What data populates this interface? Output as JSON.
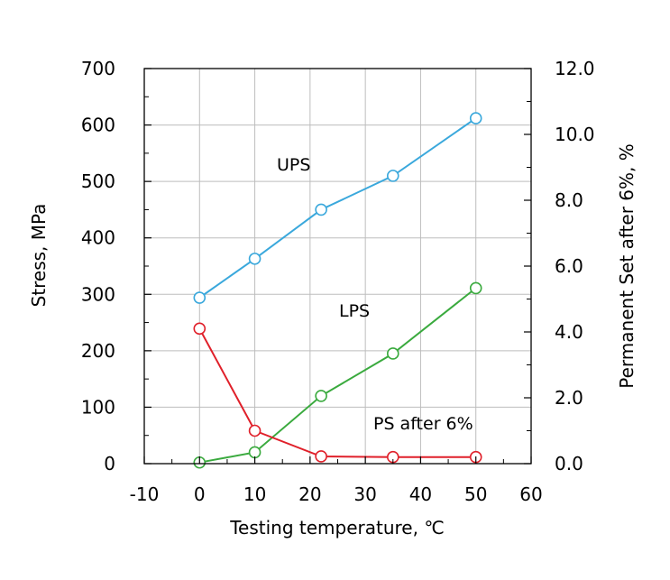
{
  "chart_data": {
    "type": "line",
    "xlabel": "Testing temperature, ℃",
    "ylabel": "Stress, MPa",
    "y2label": "Permanent Set after 6%, %",
    "xlim": [
      -10,
      60
    ],
    "ylim": [
      0,
      700
    ],
    "y2lim": [
      0,
      12
    ],
    "x_ticks": [
      "-10",
      "0",
      "10",
      "20",
      "30",
      "40",
      "50",
      "60"
    ],
    "y_ticks": [
      "0",
      "100",
      "200",
      "300",
      "400",
      "500",
      "600",
      "700"
    ],
    "y2_ticks": [
      "0.0",
      "2.0",
      "4.0",
      "6.0",
      "8.0",
      "10.0",
      "12.0"
    ],
    "grid": true,
    "series": [
      {
        "name": "UPS",
        "axis": "left",
        "color": "#3aa8dc",
        "marker": "open-circle",
        "x": [
          0,
          10,
          22,
          35,
          50
        ],
        "y": [
          294,
          363,
          450,
          510,
          612
        ]
      },
      {
        "name": "LPS",
        "axis": "left",
        "color": "#3aaa3e",
        "marker": "open-circle",
        "x": [
          0,
          10,
          22,
          35,
          50
        ],
        "y": [
          2,
          20,
          120,
          195,
          311
        ]
      },
      {
        "name": "PS after 6%",
        "axis": "right",
        "color": "#e0202a",
        "marker": "open-circle",
        "x": [
          0,
          10,
          22,
          35,
          50
        ],
        "y": [
          4.1,
          1.0,
          0.22,
          0.2,
          0.2
        ]
      }
    ]
  }
}
